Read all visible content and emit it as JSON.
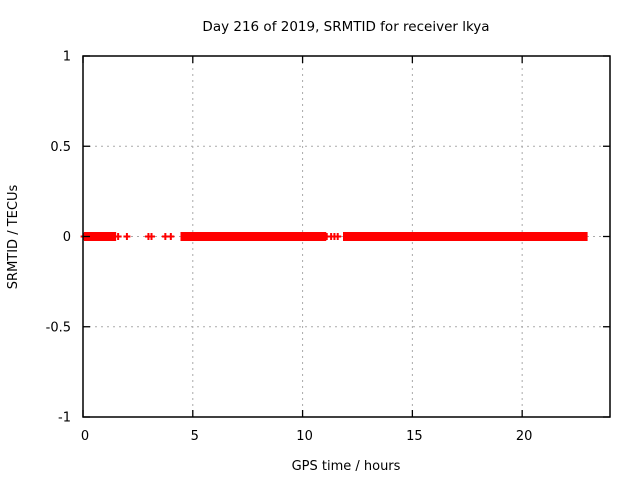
{
  "chart_data": {
    "type": "scatter",
    "title": "Day 216 of 2019, SRMTID for receiver lkya",
    "xlabel": "GPS time / hours",
    "ylabel": "SRMTID / TECUs",
    "xlim": [
      0,
      24
    ],
    "ylim": [
      -1,
      1
    ],
    "xticks": [
      0,
      5,
      10,
      15,
      20
    ],
    "yticks": [
      1,
      0.5,
      0,
      -0.5,
      -1
    ],
    "grid": true,
    "legend_position": "none",
    "marker": "plus",
    "marker_color": "#ff0000",
    "grid_color": "#aaaaaa",
    "border_color": "#000000",
    "background_color": "#ffffff",
    "series": [
      {
        "name": "SRMTID",
        "y_value": 0,
        "dense_segments_hours": [
          [
            0.2,
            1.35
          ],
          [
            4.6,
            10.2
          ],
          [
            10.38,
            10.55
          ],
          [
            10.65,
            10.92
          ],
          [
            12.0,
            22.82
          ]
        ],
        "isolated_points_hours": [
          0.05,
          1.6,
          2.0,
          2.98,
          3.12,
          3.75,
          4.0,
          11.1,
          11.3,
          11.45,
          11.6
        ]
      }
    ]
  }
}
